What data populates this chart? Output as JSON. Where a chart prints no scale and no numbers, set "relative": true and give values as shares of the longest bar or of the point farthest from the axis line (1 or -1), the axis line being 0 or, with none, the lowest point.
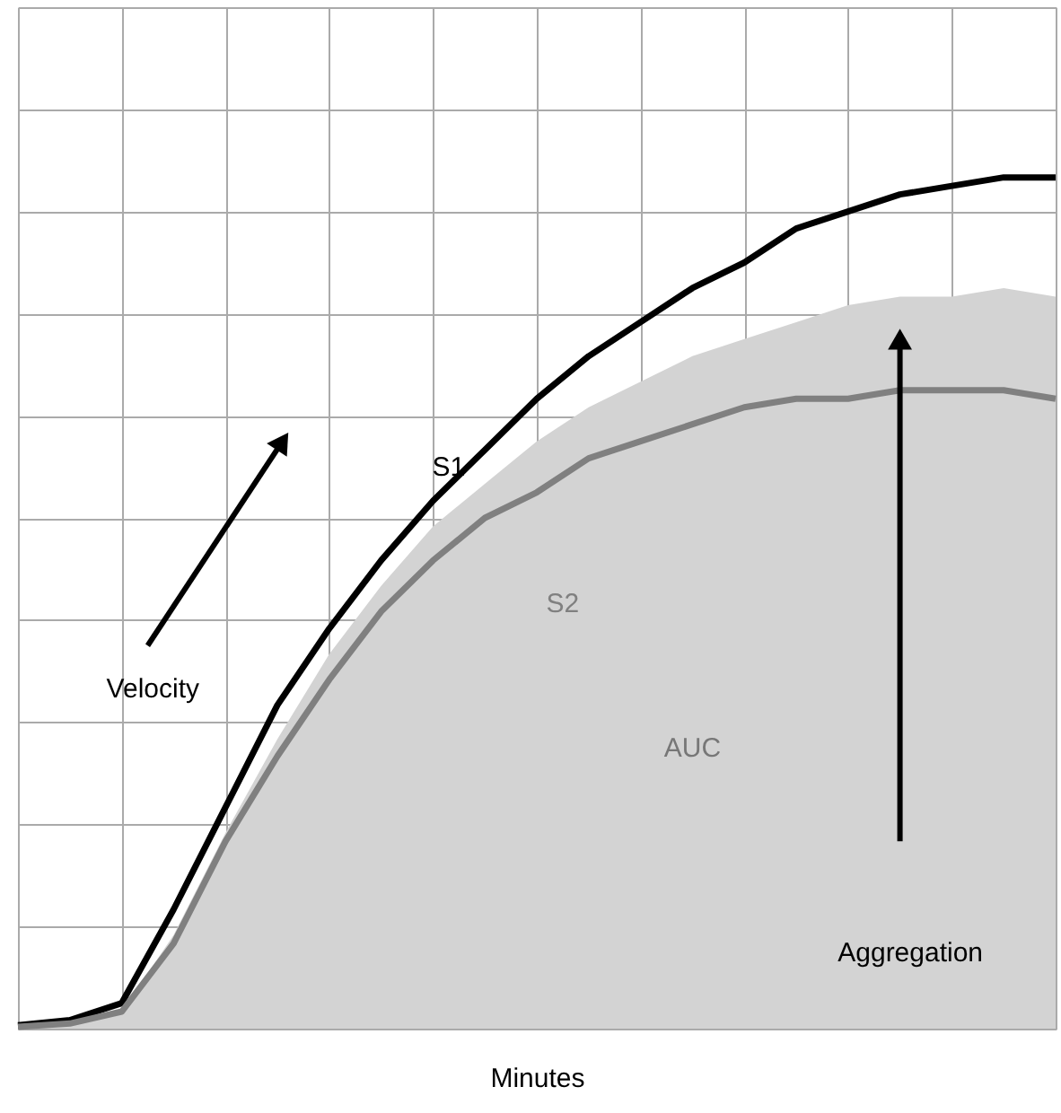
{
  "chart_data": {
    "type": "line",
    "relative": true,
    "xlabel": "Minutes",
    "grid": true,
    "legend": false,
    "marker": "none",
    "line_style": "solid",
    "categories": [
      null,
      null,
      null,
      null,
      null,
      null,
      null,
      null,
      null,
      null,
      null,
      null,
      null,
      null,
      null,
      null,
      null,
      null,
      null,
      null,
      null
    ],
    "series": [
      {
        "name": "AUC",
        "type": "area",
        "color": "#d3d3d3",
        "values": [
          0.002,
          0.006,
          0.02,
          0.11,
          0.23,
          0.34,
          0.44,
          0.52,
          0.59,
          0.64,
          0.69,
          0.73,
          0.76,
          0.79,
          0.81,
          0.83,
          0.85,
          0.86,
          0.86,
          0.87,
          0.86
        ]
      },
      {
        "name": "S1",
        "color": "#000000",
        "values": [
          0.004,
          0.01,
          0.03,
          0.14,
          0.26,
          0.38,
          0.47,
          0.55,
          0.62,
          0.68,
          0.74,
          0.79,
          0.83,
          0.87,
          0.9,
          0.94,
          0.96,
          0.98,
          0.99,
          1.0,
          1.0
        ]
      },
      {
        "name": "S2",
        "color": "#808080",
        "values": [
          0.002,
          0.006,
          0.02,
          0.1,
          0.22,
          0.32,
          0.41,
          0.49,
          0.55,
          0.6,
          0.63,
          0.67,
          0.69,
          0.71,
          0.73,
          0.74,
          0.74,
          0.75,
          0.75,
          0.75,
          0.74
        ]
      }
    ],
    "annotations": [
      "Velocity",
      "Aggregation"
    ]
  }
}
